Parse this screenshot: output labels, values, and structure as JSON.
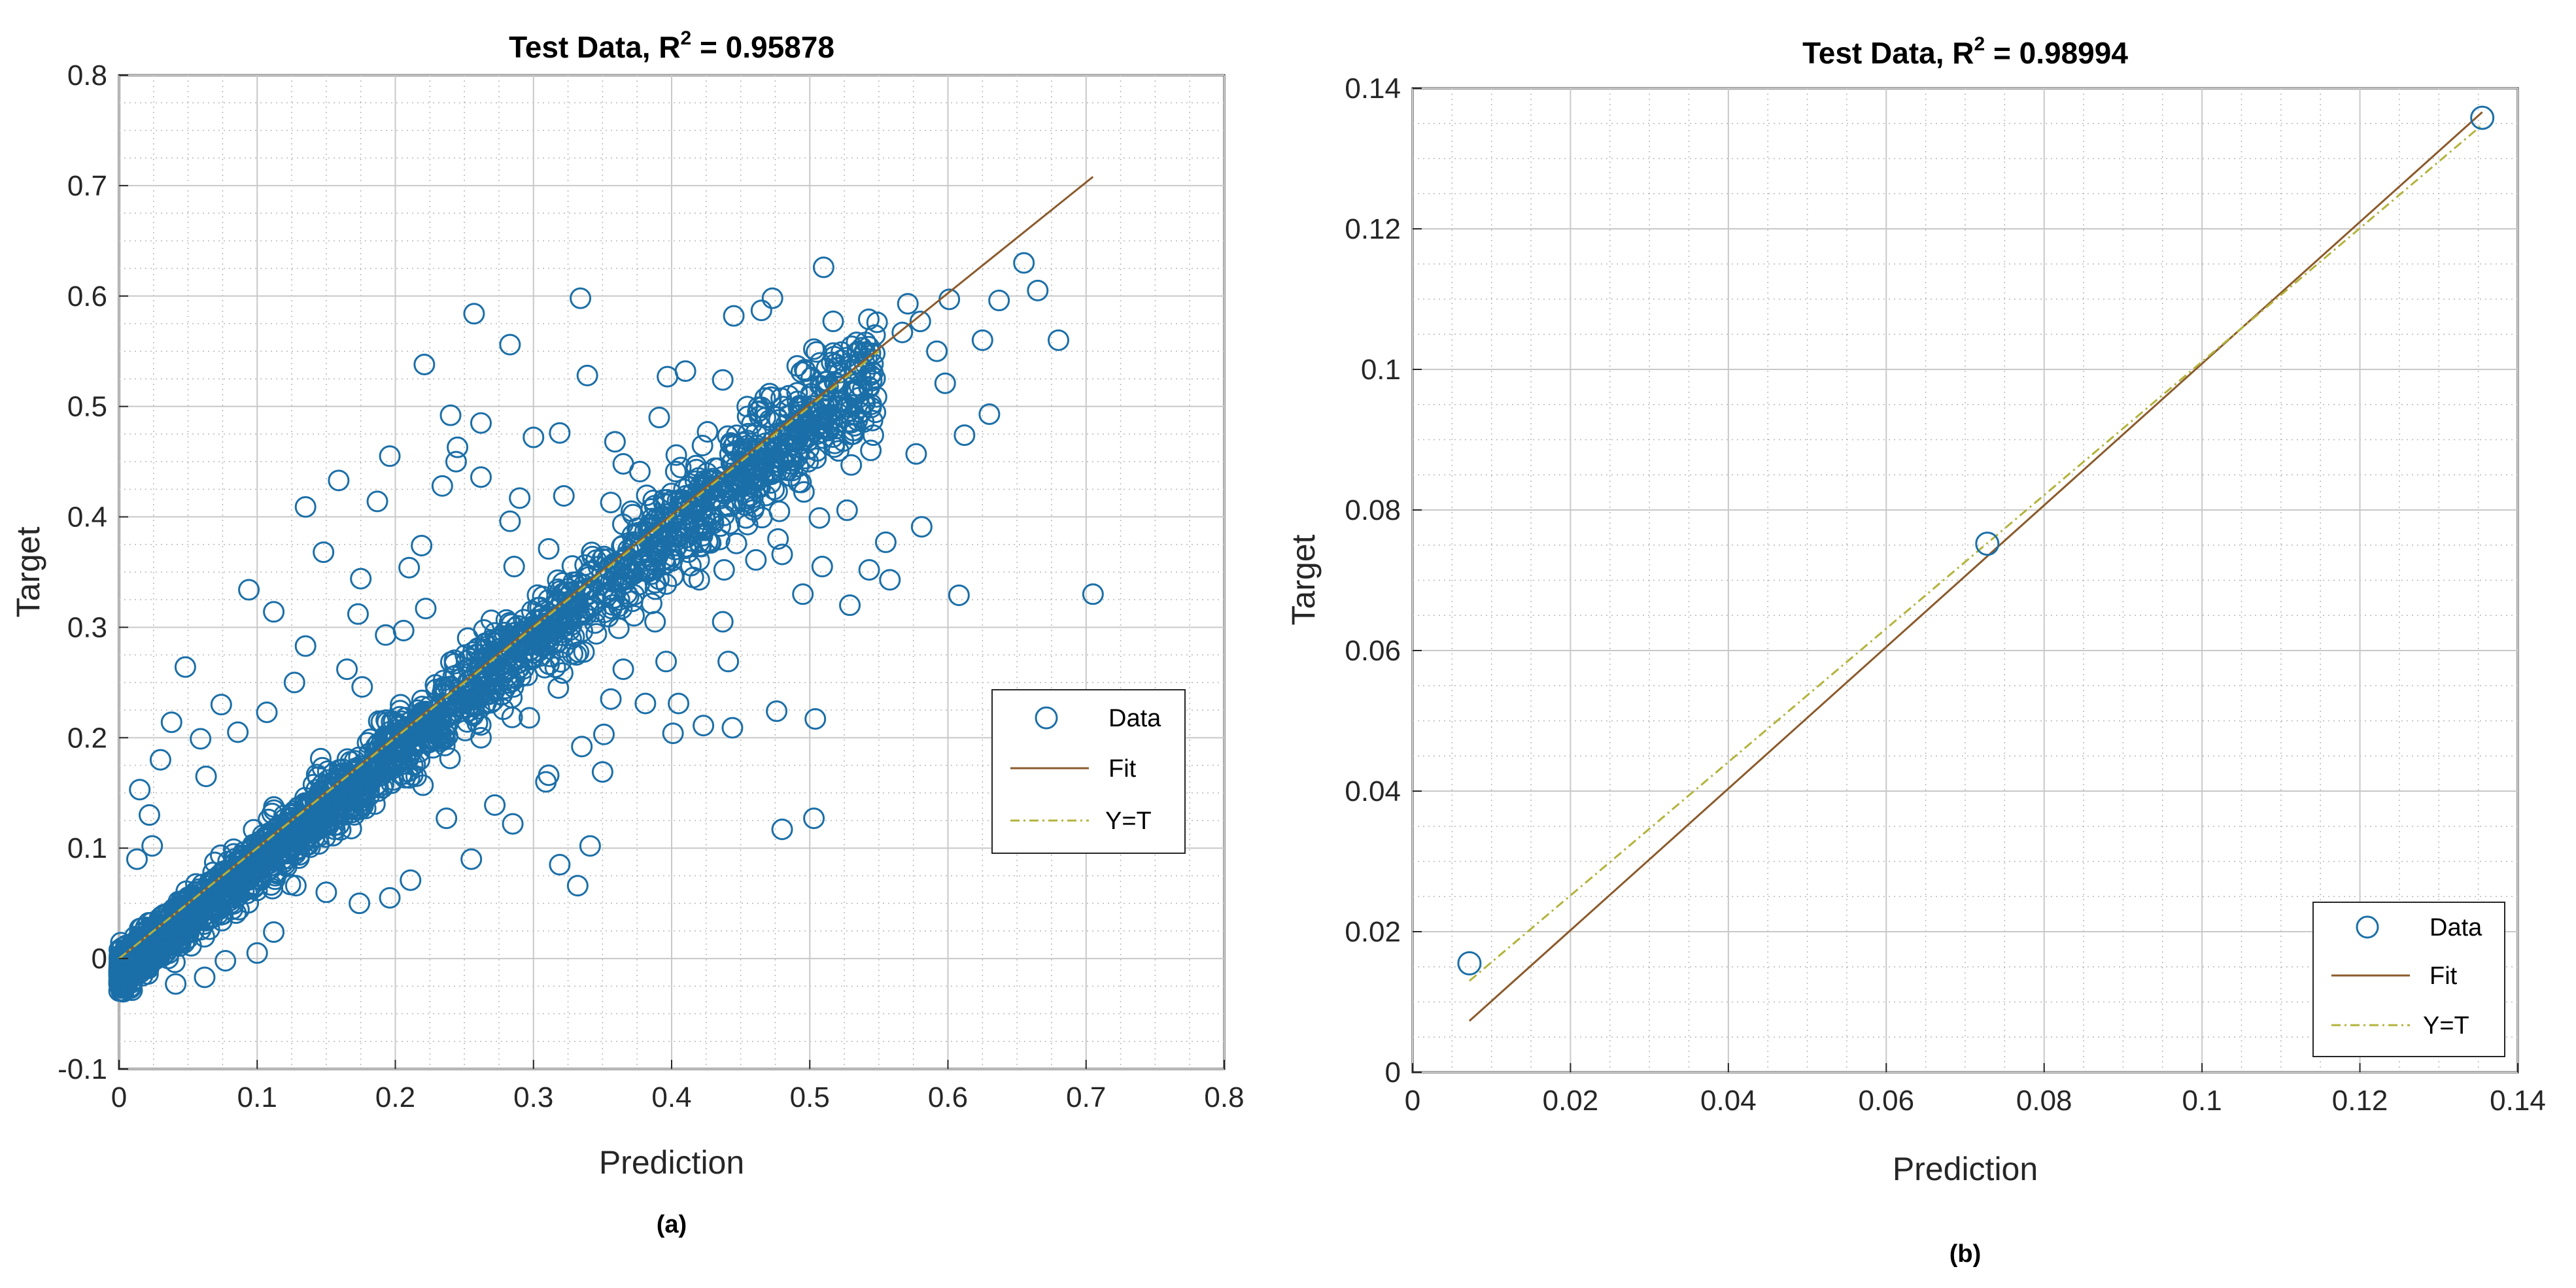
{
  "colors": {
    "data": "#1b6fa8",
    "fit": "#8b5a2b",
    "yt": "#b3b33c",
    "grid_major": "#c8c8c8",
    "grid_minor": "#b8b8b8",
    "axis": "#262626"
  },
  "chart_data": [
    {
      "type": "scatter",
      "panel_label": "(a)",
      "title_prefix": "Test Data, R",
      "title_sup": "2",
      "title_suffix": " = 0.95878",
      "xlabel": "Prediction",
      "ylabel": "Target",
      "xlim": [
        0,
        0.8
      ],
      "ylim": [
        -0.1,
        0.8
      ],
      "xticks": [
        "0",
        "0.1",
        "0.2",
        "0.3",
        "0.4",
        "0.5",
        "0.6",
        "0.7",
        "0.8"
      ],
      "yticks": [
        "-0.1",
        "0",
        "0.1",
        "0.2",
        "0.3",
        "0.4",
        "0.5",
        "0.6",
        "0.7",
        "0.8"
      ],
      "legend": [
        "Data",
        "Fit",
        "Y=T"
      ],
      "legend_position": "middle-right",
      "fit_line": {
        "x": [
          0,
          0.705
        ],
        "y": [
          0.0,
          0.708
        ]
      },
      "yt_line": {
        "x": [
          0,
          0.55
        ],
        "y": [
          0.0,
          0.55
        ]
      },
      "dense_band": {
        "n": 2200,
        "x_range": [
          0,
          0.55
        ],
        "spread": 0.045,
        "seed": 7
      },
      "outliers": [
        [
          0.257,
          0.584
        ],
        [
          0.334,
          0.598
        ],
        [
          0.283,
          0.556
        ],
        [
          0.221,
          0.538
        ],
        [
          0.445,
          0.582
        ],
        [
          0.473,
          0.598
        ],
        [
          0.51,
          0.626
        ],
        [
          0.465,
          0.587
        ],
        [
          0.571,
          0.593
        ],
        [
          0.58,
          0.577
        ],
        [
          0.601,
          0.597
        ],
        [
          0.655,
          0.63
        ],
        [
          0.665,
          0.605
        ],
        [
          0.637,
          0.596
        ],
        [
          0.68,
          0.56
        ],
        [
          0.625,
          0.56
        ],
        [
          0.567,
          0.567
        ],
        [
          0.592,
          0.55
        ],
        [
          0.598,
          0.521
        ],
        [
          0.63,
          0.493
        ],
        [
          0.612,
          0.474
        ],
        [
          0.577,
          0.457
        ],
        [
          0.546,
          0.474
        ],
        [
          0.53,
          0.447
        ],
        [
          0.581,
          0.391
        ],
        [
          0.555,
          0.377
        ],
        [
          0.558,
          0.343
        ],
        [
          0.608,
          0.329
        ],
        [
          0.705,
          0.33
        ],
        [
          0.527,
          0.406
        ],
        [
          0.507,
          0.399
        ],
        [
          0.478,
          0.405
        ],
        [
          0.48,
          0.366
        ],
        [
          0.461,
          0.361
        ],
        [
          0.438,
          0.352
        ],
        [
          0.437,
          0.305
        ],
        [
          0.412,
          0.368
        ],
        [
          0.42,
          0.343
        ],
        [
          0.441,
          0.269
        ],
        [
          0.396,
          0.269
        ],
        [
          0.405,
          0.231
        ],
        [
          0.423,
          0.211
        ],
        [
          0.444,
          0.209
        ],
        [
          0.476,
          0.224
        ],
        [
          0.504,
          0.217
        ],
        [
          0.401,
          0.204
        ],
        [
          0.351,
          0.203
        ],
        [
          0.35,
          0.169
        ],
        [
          0.311,
          0.166
        ],
        [
          0.309,
          0.16
        ],
        [
          0.335,
          0.192
        ],
        [
          0.48,
          0.117
        ],
        [
          0.503,
          0.127
        ],
        [
          0.341,
          0.102
        ],
        [
          0.319,
          0.085
        ],
        [
          0.332,
          0.066
        ],
        [
          0.365,
          0.448
        ],
        [
          0.391,
          0.49
        ],
        [
          0.41,
          0.532
        ],
        [
          0.397,
          0.527
        ],
        [
          0.339,
          0.528
        ],
        [
          0.319,
          0.476
        ],
        [
          0.3,
          0.472
        ],
        [
          0.29,
          0.417
        ],
        [
          0.283,
          0.396
        ],
        [
          0.286,
          0.355
        ],
        [
          0.262,
          0.436
        ],
        [
          0.245,
          0.463
        ],
        [
          0.24,
          0.492
        ],
        [
          0.262,
          0.485
        ],
        [
          0.234,
          0.428
        ],
        [
          0.244,
          0.45
        ],
        [
          0.196,
          0.455
        ],
        [
          0.187,
          0.414
        ],
        [
          0.159,
          0.433
        ],
        [
          0.135,
          0.409
        ],
        [
          0.148,
          0.368
        ],
        [
          0.175,
          0.344
        ],
        [
          0.21,
          0.354
        ],
        [
          0.219,
          0.374
        ],
        [
          0.094,
          0.334
        ],
        [
          0.112,
          0.314
        ],
        [
          0.173,
          0.312
        ],
        [
          0.206,
          0.297
        ],
        [
          0.222,
          0.317
        ],
        [
          0.048,
          0.264
        ],
        [
          0.074,
          0.23
        ],
        [
          0.038,
          0.214
        ],
        [
          0.059,
          0.199
        ],
        [
          0.03,
          0.18
        ],
        [
          0.015,
          0.153
        ],
        [
          0.022,
          0.13
        ],
        [
          0.083,
          0.099
        ],
        [
          0.092,
          0.08
        ],
        [
          0.122,
          0.095
        ],
        [
          0.128,
          0.066
        ],
        [
          0.15,
          0.06
        ],
        [
          0.174,
          0.05
        ],
        [
          0.196,
          0.055
        ],
        [
          0.211,
          0.071
        ],
        [
          0.255,
          0.09
        ],
        [
          0.237,
          0.127
        ],
        [
          0.272,
          0.139
        ],
        [
          0.285,
          0.122
        ],
        [
          0.22,
          0.157
        ],
        [
          0.185,
          0.17
        ],
        [
          0.163,
          0.13
        ],
        [
          0.146,
          0.181
        ],
        [
          0.262,
          0.2
        ],
        [
          0.297,
          0.218
        ],
        [
          0.318,
          0.245
        ],
        [
          0.331,
          0.275
        ],
        [
          0.356,
          0.235
        ],
        [
          0.365,
          0.262
        ],
        [
          0.381,
          0.231
        ],
        [
          0.388,
          0.305
        ],
        [
          0.364,
          0.317
        ],
        [
          0.347,
          0.355
        ],
        [
          0.268,
          0.255
        ],
        [
          0.254,
          0.23
        ],
        [
          0.013,
          0.09
        ],
        [
          0.024,
          0.102
        ],
        [
          0.021,
          -0.014
        ],
        [
          0.041,
          -0.023
        ],
        [
          0.062,
          -0.017
        ],
        [
          0.077,
          -0.002
        ],
        [
          0.1,
          0.005
        ],
        [
          0.112,
          0.024
        ],
        [
          0.045,
          0.031
        ],
        [
          0.52,
          0.5
        ],
        [
          0.532,
          0.493
        ],
        [
          0.497,
          0.473
        ],
        [
          0.486,
          0.455
        ],
        [
          0.459,
          0.431
        ],
        [
          0.455,
          0.393
        ],
        [
          0.477,
          0.38
        ],
        [
          0.509,
          0.355
        ],
        [
          0.529,
          0.32
        ],
        [
          0.543,
          0.352
        ],
        [
          0.495,
          0.33
        ],
        [
          0.388,
          0.392
        ],
        [
          0.372,
          0.402
        ],
        [
          0.356,
          0.413
        ],
        [
          0.322,
          0.419
        ],
        [
          0.311,
          0.371
        ],
        [
          0.403,
          0.441
        ],
        [
          0.426,
          0.477
        ],
        [
          0.455,
          0.491
        ],
        [
          0.437,
          0.524
        ],
        [
          0.359,
          0.468
        ],
        [
          0.377,
          0.441
        ],
        [
          0.193,
          0.293
        ],
        [
          0.165,
          0.262
        ],
        [
          0.127,
          0.25
        ],
        [
          0.107,
          0.223
        ],
        [
          0.135,
          0.283
        ],
        [
          0.086,
          0.205
        ],
        [
          0.063,
          0.165
        ],
        [
          0.188,
          0.215
        ],
        [
          0.176,
          0.246
        ]
      ]
    },
    {
      "type": "scatter",
      "panel_label": "(b)",
      "title_prefix": "Test Data, R",
      "title_sup": "2",
      "title_suffix": " = 0.98994",
      "xlabel": "Prediction",
      "ylabel": "Target",
      "xlim": [
        0,
        0.14
      ],
      "ylim": [
        0,
        0.14
      ],
      "xticks": [
        "0",
        "0.02",
        "0.04",
        "0.06",
        "0.08",
        "0.1",
        "0.12",
        "0.14"
      ],
      "yticks": [
        "0",
        "0.02",
        "0.04",
        "0.06",
        "0.08",
        "0.1",
        "0.12",
        "0.14"
      ],
      "legend": [
        "Data",
        "Fit",
        "Y=T"
      ],
      "legend_position": "bottom-right",
      "points": [
        [
          0.0072,
          0.0155
        ],
        [
          0.0728,
          0.0752
        ],
        [
          0.1355,
          0.1358
        ]
      ],
      "fit_line": {
        "x": [
          0.0072,
          0.1355
        ],
        "y": [
          0.0073,
          0.1366
        ]
      },
      "yt_line": {
        "x": [
          0.0072,
          0.1355
        ],
        "y": [
          0.013,
          0.1348
        ]
      }
    }
  ]
}
